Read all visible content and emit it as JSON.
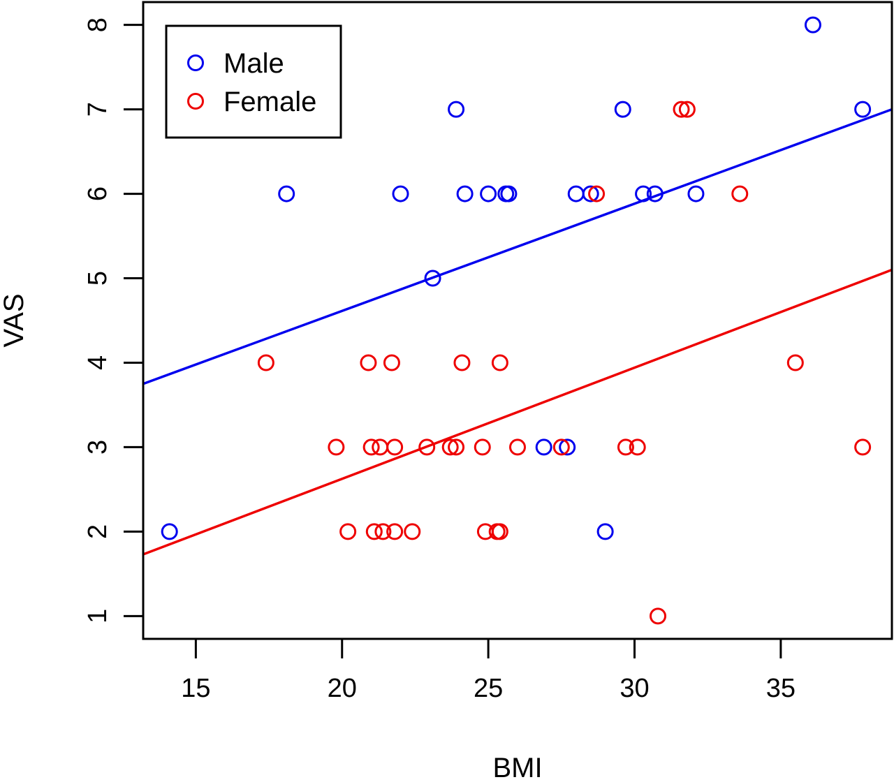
{
  "chart_data": {
    "type": "scatter",
    "title": "",
    "xlabel": "BMI",
    "ylabel": "VAS",
    "xlim": [
      13.2,
      38.8
    ],
    "ylim": [
      0.73,
      8.27
    ],
    "xticks": [
      15,
      20,
      25,
      30,
      35
    ],
    "yticks": [
      1,
      2,
      3,
      4,
      5,
      6,
      7,
      8
    ],
    "grid": false,
    "legend": {
      "position": "top-left",
      "entries": [
        "Male",
        "Female"
      ]
    },
    "series": [
      {
        "name": "Male",
        "color": "#0000ee",
        "marker": "open-circle",
        "points": [
          [
            14.1,
            2
          ],
          [
            18.1,
            6
          ],
          [
            22.0,
            6
          ],
          [
            23.1,
            5
          ],
          [
            23.9,
            7
          ],
          [
            24.2,
            6
          ],
          [
            25.0,
            6
          ],
          [
            25.6,
            6
          ],
          [
            25.7,
            6
          ],
          [
            26.9,
            3
          ],
          [
            27.7,
            3
          ],
          [
            28.0,
            6
          ],
          [
            28.5,
            6
          ],
          [
            29.0,
            2
          ],
          [
            29.6,
            7
          ],
          [
            30.3,
            6
          ],
          [
            30.7,
            6
          ],
          [
            32.1,
            6
          ],
          [
            36.1,
            8
          ],
          [
            37.8,
            7
          ]
        ],
        "fit_line": [
          [
            13.2,
            3.75
          ],
          [
            38.8,
            7.0
          ]
        ]
      },
      {
        "name": "Female",
        "color": "#ee0000",
        "marker": "open-circle",
        "points": [
          [
            17.4,
            4
          ],
          [
            19.8,
            3
          ],
          [
            20.2,
            2
          ],
          [
            20.9,
            4
          ],
          [
            21.0,
            3
          ],
          [
            21.1,
            2
          ],
          [
            21.3,
            3
          ],
          [
            21.4,
            2
          ],
          [
            21.7,
            4
          ],
          [
            21.8,
            3
          ],
          [
            21.8,
            2
          ],
          [
            22.4,
            2
          ],
          [
            22.9,
            3
          ],
          [
            23.7,
            3
          ],
          [
            23.9,
            3
          ],
          [
            24.1,
            4
          ],
          [
            24.8,
            3
          ],
          [
            24.9,
            2
          ],
          [
            25.3,
            2
          ],
          [
            25.4,
            2
          ],
          [
            25.4,
            4
          ],
          [
            26.0,
            3
          ],
          [
            27.5,
            3
          ],
          [
            28.7,
            6
          ],
          [
            29.7,
            3
          ],
          [
            30.1,
            3
          ],
          [
            30.8,
            1
          ],
          [
            31.6,
            7
          ],
          [
            31.8,
            7
          ],
          [
            33.6,
            6
          ],
          [
            35.5,
            4
          ],
          [
            37.8,
            3
          ]
        ],
        "fit_line": [
          [
            13.2,
            1.73
          ],
          [
            38.8,
            5.1
          ]
        ]
      }
    ]
  }
}
